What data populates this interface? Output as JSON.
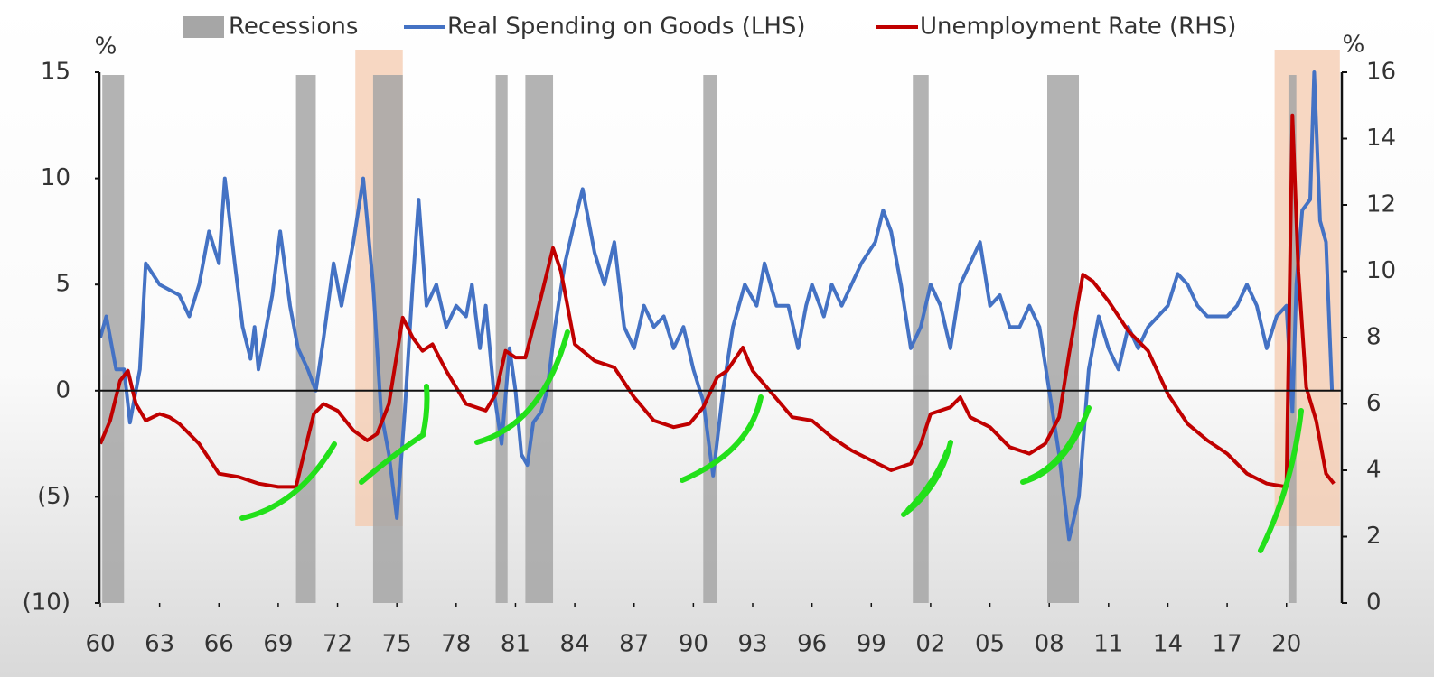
{
  "chart_data": {
    "type": "line",
    "left_unit": "%",
    "right_unit": "%",
    "recessions": {
      "name": "Recessions",
      "color": "#a6a6a6",
      "periods": [
        [
          1960.1,
          1961.2
        ],
        [
          1969.9,
          1970.9
        ],
        [
          1973.8,
          1975.3
        ],
        [
          1980.0,
          1980.6
        ],
        [
          1981.5,
          1982.9
        ],
        [
          1990.5,
          1991.2
        ],
        [
          2001.1,
          2001.9
        ],
        [
          2007.9,
          2009.5
        ],
        [
          2020.1,
          2020.5
        ]
      ]
    },
    "highlights": {
      "color": "#f4c9ae",
      "periods": [
        [
          1972.9,
          1975.3
        ],
        [
          2019.4,
          2022.7
        ]
      ]
    },
    "xlim": [
      1960,
      2022.8
    ],
    "xticks": [
      {
        "value": 1960,
        "label": "60"
      },
      {
        "value": 1963,
        "label": "63"
      },
      {
        "value": 1966,
        "label": "66"
      },
      {
        "value": 1969,
        "label": "69"
      },
      {
        "value": 1972,
        "label": "72"
      },
      {
        "value": 1975,
        "label": "75"
      },
      {
        "value": 1978,
        "label": "78"
      },
      {
        "value": 1981,
        "label": "81"
      },
      {
        "value": 1984,
        "label": "84"
      },
      {
        "value": 1987,
        "label": "87"
      },
      {
        "value": 1990,
        "label": "90"
      },
      {
        "value": 1993,
        "label": "93"
      },
      {
        "value": 1996,
        "label": "96"
      },
      {
        "value": 1999,
        "label": "99"
      },
      {
        "value": 2002,
        "label": "02"
      },
      {
        "value": 2005,
        "label": "05"
      },
      {
        "value": 2008,
        "label": "08"
      },
      {
        "value": 2011,
        "label": "11"
      },
      {
        "value": 2014,
        "label": "14"
      },
      {
        "value": 2017,
        "label": "17"
      },
      {
        "value": 2020,
        "label": "20"
      }
    ],
    "ylim": [
      -10,
      15
    ],
    "yticks": [
      15,
      10,
      5,
      0,
      {
        "value": -5,
        "label": "(5)"
      },
      {
        "value": -10,
        "label": "(10)"
      }
    ],
    "y2lim": [
      0,
      16
    ],
    "y2ticks": [
      16,
      14,
      12,
      10,
      8,
      6,
      4,
      2,
      0
    ],
    "series": [
      {
        "name": "Real Spending on Goods (LHS)",
        "color": "#4472c4",
        "axis": "y",
        "x": [
          1960,
          1960.3,
          1960.8,
          1961.2,
          1961.5,
          1962,
          1962.3,
          1963,
          1964,
          1964.5,
          1965,
          1965.5,
          1966,
          1966.3,
          1966.8,
          1967.2,
          1967.6,
          1967.8,
          1968,
          1968.7,
          1969.1,
          1969.6,
          1970,
          1970.5,
          1970.9,
          1971.3,
          1971.8,
          1972.2,
          1972.8,
          1973.3,
          1973.8,
          1974.2,
          1974.6,
          1975,
          1975.4,
          1975.8,
          1976.1,
          1976.5,
          1977,
          1977.5,
          1978,
          1978.5,
          1978.8,
          1979.2,
          1979.5,
          1979.9,
          1980.3,
          1980.7,
          1981,
          1981.3,
          1981.6,
          1981.9,
          1982.3,
          1982.6,
          1983,
          1983.5,
          1984,
          1984.4,
          1985,
          1985.5,
          1986,
          1986.5,
          1987,
          1987.5,
          1988,
          1988.5,
          1989,
          1989.5,
          1990,
          1990.5,
          1991,
          1991.5,
          1992,
          1992.6,
          1993.2,
          1993.6,
          1994.2,
          1994.8,
          1995.3,
          1995.7,
          1996,
          1996.6,
          1997,
          1997.5,
          1998,
          1998.5,
          1999.2,
          1999.6,
          2000,
          2000.5,
          2001,
          2001.5,
          2002,
          2002.5,
          2003,
          2003.5,
          2004,
          2004.5,
          2005,
          2005.5,
          2006,
          2006.5,
          2007,
          2007.5,
          2008,
          2008.5,
          2009,
          2009.5,
          2010,
          2010.5,
          2011,
          2011.5,
          2012,
          2012.5,
          2013,
          2013.5,
          2014,
          2014.5,
          2015,
          2015.5,
          2016,
          2016.5,
          2017,
          2017.5,
          2018,
          2018.5,
          2019,
          2019.5,
          2020,
          2020.3,
          2020.5,
          2020.8,
          2021.2,
          2021.4,
          2021.7,
          2022,
          2022.3
        ],
        "values": [
          2.5,
          3.5,
          1,
          1,
          -1.5,
          1,
          6,
          5,
          4.5,
          3.5,
          5,
          7.5,
          6,
          10,
          6,
          3,
          1.5,
          3,
          1,
          4.5,
          7.5,
          4,
          2,
          1,
          0,
          2.5,
          6,
          4,
          7,
          10,
          5,
          -1,
          -3,
          -6,
          -1,
          5,
          9,
          4,
          5,
          3,
          4,
          3.5,
          5,
          2,
          4,
          0,
          -2.5,
          2,
          0,
          -3,
          -3.5,
          -1.5,
          -1,
          0,
          3,
          6,
          8,
          9.5,
          6.5,
          5,
          7,
          3,
          2,
          4,
          3,
          3.5,
          2,
          3,
          1,
          -0.5,
          -4,
          0,
          3,
          5,
          4,
          6,
          4,
          4,
          2,
          4,
          5,
          3.5,
          5,
          4,
          5,
          6,
          7,
          8.5,
          7.5,
          5,
          2,
          3,
          5,
          4,
          2,
          5,
          6,
          7,
          4,
          4.5,
          3,
          3,
          4,
          3,
          0,
          -3,
          -7,
          -5,
          1,
          3.5,
          2,
          1,
          3,
          2,
          3,
          3.5,
          4,
          5.5,
          5,
          4,
          3.5,
          3.5,
          3.5,
          4,
          5,
          4,
          2,
          3.5,
          4,
          -1,
          5,
          8.5,
          9,
          15,
          8,
          7,
          0
        ]
      },
      {
        "name": "Unemployment Rate (RHS)",
        "color": "#c00000",
        "axis": "y2",
        "x": [
          1960,
          1960.5,
          1961,
          1961.4,
          1961.8,
          1962.3,
          1963,
          1963.5,
          1964,
          1965,
          1966,
          1967,
          1968,
          1969,
          1969.9,
          1970.3,
          1970.8,
          1971.3,
          1972,
          1972.8,
          1973.5,
          1974,
          1974.6,
          1975.3,
          1975.8,
          1976.3,
          1976.8,
          1977.5,
          1978.5,
          1979.5,
          1980,
          1980.5,
          1981,
          1981.5,
          1982.2,
          1982.9,
          1983.3,
          1984,
          1985,
          1986,
          1987,
          1988,
          1989,
          1989.8,
          1990.5,
          1991.2,
          1991.7,
          1992.5,
          1993,
          1994,
          1995,
          1996,
          1997,
          1998,
          1999,
          2000,
          2001,
          2001.5,
          2002,
          2003,
          2003.5,
          2004,
          2005,
          2006,
          2007,
          2007.8,
          2008.5,
          2009,
          2009.7,
          2010.2,
          2011,
          2012,
          2013,
          2014,
          2015,
          2016,
          2017,
          2018,
          2019,
          2020,
          2020.3,
          2020.6,
          2021,
          2021.5,
          2022,
          2022.4
        ],
        "values": [
          4.8,
          5.5,
          6.7,
          7,
          6,
          5.5,
          5.7,
          5.6,
          5.4,
          4.8,
          3.9,
          3.8,
          3.6,
          3.5,
          3.5,
          4.5,
          5.7,
          6,
          5.8,
          5.2,
          4.9,
          5.1,
          6,
          8.6,
          8,
          7.6,
          7.8,
          7,
          6,
          5.8,
          6.3,
          7.6,
          7.4,
          7.4,
          9,
          10.7,
          10,
          7.8,
          7.3,
          7.1,
          6.2,
          5.5,
          5.3,
          5.4,
          5.9,
          6.8,
          7,
          7.7,
          7,
          6.3,
          5.6,
          5.5,
          5,
          4.6,
          4.3,
          4,
          4.2,
          4.8,
          5.7,
          5.9,
          6.2,
          5.6,
          5.3,
          4.7,
          4.5,
          4.8,
          5.6,
          7.5,
          9.9,
          9.7,
          9.1,
          8.2,
          7.6,
          6.3,
          5.4,
          4.9,
          4.5,
          3.9,
          3.6,
          3.5,
          14.7,
          10,
          6.5,
          5.5,
          3.9,
          3.6
        ]
      }
    ]
  }
}
